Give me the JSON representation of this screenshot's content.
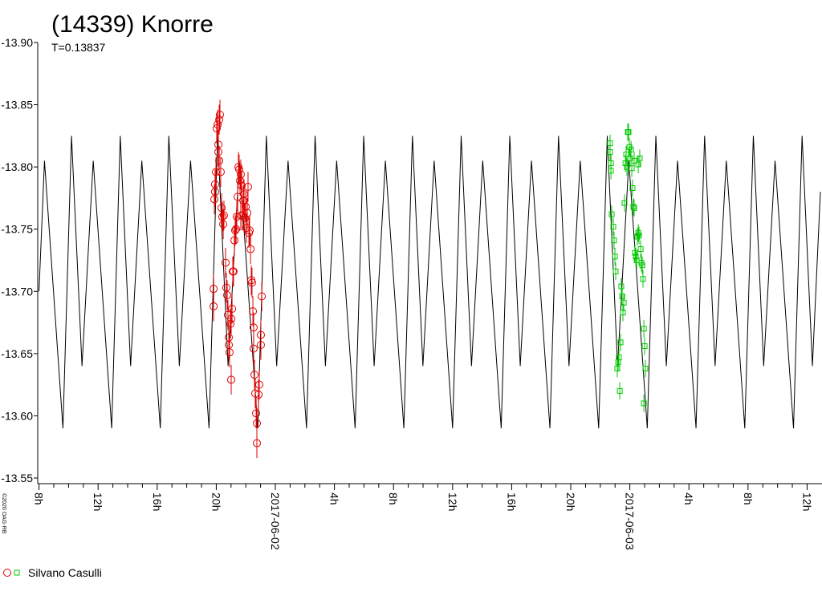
{
  "chart_data": {
    "type": "scatter",
    "title": "(14339) Knorre",
    "subtitle": "T=0.13837",
    "credit": "©2020 OAG-RB",
    "xlim": [
      -16,
      36.9
    ],
    "ylim": [
      -13.55,
      -13.9
    ],
    "yticks": [
      {
        "value": -13.9,
        "label": "-13.90"
      },
      -13.85,
      {
        "value": -13.8,
        "label": "-13.80"
      },
      -13.75,
      {
        "value": -13.7,
        "label": "-13.70"
      },
      -13.65,
      {
        "value": -13.6,
        "label": "-13.60"
      },
      -13.55
    ],
    "xticks": [
      {
        "value": -16,
        "label": "8h"
      },
      {
        "value": -12,
        "label": "12h"
      },
      {
        "value": -8,
        "label": "16h"
      },
      {
        "value": -4,
        "label": "20h"
      },
      {
        "value": 0,
        "label": "2017-06-02"
      },
      {
        "value": 4,
        "label": "4h"
      },
      {
        "value": 8,
        "label": "8h"
      },
      {
        "value": 12,
        "label": "12h"
      },
      {
        "value": 16,
        "label": "16h"
      },
      {
        "value": 20,
        "label": "20h"
      },
      {
        "value": 24,
        "label": "2017-06-03"
      },
      {
        "value": 28,
        "label": "4h"
      },
      {
        "value": 32,
        "label": "8h"
      },
      {
        "value": 36,
        "label": "12h"
      }
    ],
    "series": [
      {
        "type": "line",
        "color": "#000000",
        "x": [
          -16,
          -15.63,
          -14.38,
          -13.8,
          -13.09,
          -12.33,
          -11.08,
          -10.5,
          -9.8,
          -9.04,
          -7.79,
          -7.21,
          -6.5,
          -5.74,
          -4.49,
          -3.91,
          -3.2,
          -2.44,
          -1.19,
          -0.61,
          0.09,
          0.86,
          2.11,
          2.69,
          3.39,
          4.15,
          5.4,
          5.98,
          6.69,
          7.45,
          8.7,
          9.28,
          9.99,
          10.75,
          12.0,
          12.58,
          13.28,
          14.04,
          15.29,
          15.87,
          16.58,
          17.34,
          18.59,
          19.17,
          19.88,
          20.64,
          21.89,
          22.47,
          23.17,
          23.93,
          25.18,
          25.76,
          26.47,
          27.23,
          28.48,
          29.06,
          29.77,
          30.53,
          31.78,
          32.36,
          33.06,
          33.83,
          35.08,
          35.66,
          36.36,
          36.9
        ],
        "values": [
          -13.7,
          -13.805,
          -13.59,
          -13.825,
          -13.64,
          -13.805,
          -13.59,
          -13.825,
          -13.64,
          -13.805,
          -13.59,
          -13.825,
          -13.64,
          -13.805,
          -13.59,
          -13.825,
          -13.64,
          -13.805,
          -13.59,
          -13.825,
          -13.64,
          -13.805,
          -13.59,
          -13.825,
          -13.64,
          -13.805,
          -13.59,
          -13.825,
          -13.64,
          -13.805,
          -13.59,
          -13.825,
          -13.64,
          -13.805,
          -13.59,
          -13.825,
          -13.64,
          -13.805,
          -13.59,
          -13.825,
          -13.64,
          -13.805,
          -13.59,
          -13.825,
          -13.64,
          -13.805,
          -13.59,
          -13.825,
          -13.64,
          -13.805,
          -13.59,
          -13.825,
          -13.64,
          -13.805,
          -13.59,
          -13.825,
          -13.64,
          -13.805,
          -13.59,
          -13.825,
          -13.64,
          -13.805,
          -13.59,
          -13.825,
          -13.64,
          -13.78
        ]
      },
      {
        "type": "scatter",
        "name": "Silvano Casulli",
        "marker": "circle",
        "color": "#e00000",
        "error": 0.012,
        "x": [
          -4.18,
          -4.18,
          -4.13,
          -4.08,
          -4.08,
          -4.02,
          -3.97,
          -3.91,
          -3.86,
          -3.8,
          -3.75,
          -3.86,
          -3.8,
          -3.7,
          -3.64,
          -3.59,
          -3.53,
          -3.48,
          -3.37,
          -3.32,
          -3.26,
          -3.21,
          -3.15,
          -3.15,
          -3.1,
          -3.04,
          -2.99,
          -2.93,
          -2.99,
          -2.88,
          -2.83,
          -2.77,
          -2.72,
          -2.66,
          -2.61,
          -2.55,
          -2.5,
          -2.45,
          -2.39,
          -2.34,
          -2.28,
          -2.34,
          -2.23,
          -2.17,
          -2.12,
          -2.07,
          -2.01,
          -1.96,
          -1.9,
          -1.85,
          -1.79,
          -1.74,
          -1.68,
          -1.63,
          -1.58,
          -1.52,
          -1.47,
          -1.47,
          -1.41,
          -1.36,
          -1.3,
          -1.25,
          -1.25,
          -1.14,
          -1.09,
          -0.98,
          -0.98,
          -0.92
        ],
        "values": [
          -13.702,
          -13.688,
          -13.774,
          -13.78,
          -13.786,
          -13.796,
          -13.831,
          -13.834,
          -13.818,
          -13.838,
          -13.842,
          -13.812,
          -13.805,
          -13.796,
          -13.767,
          -13.76,
          -13.754,
          -13.761,
          -13.723,
          -13.703,
          -13.697,
          -13.681,
          -13.663,
          -13.657,
          -13.651,
          -13.674,
          -13.678,
          -13.686,
          -13.629,
          -13.716,
          -13.716,
          -13.741,
          -13.749,
          -13.75,
          -13.76,
          -13.776,
          -13.8,
          -13.798,
          -13.789,
          -13.794,
          -13.785,
          -13.761,
          -13.761,
          -13.773,
          -13.778,
          -13.759,
          -13.768,
          -13.751,
          -13.763,
          -13.784,
          -13.747,
          -13.749,
          -13.734,
          -13.709,
          -13.707,
          -13.684,
          -13.671,
          -13.654,
          -13.633,
          -13.618,
          -13.602,
          -13.594,
          -13.578,
          -13.617,
          -13.625,
          -13.657,
          -13.665,
          -13.696
        ]
      },
      {
        "type": "scatter",
        "marker": "square",
        "color": "#00c800",
        "error": 0.007,
        "x": [
          22.66,
          22.66,
          22.72,
          22.72,
          22.77,
          22.88,
          22.93,
          22.99,
          23.04,
          23.15,
          23.21,
          23.26,
          23.32,
          23.37,
          23.42,
          23.48,
          23.53,
          23.59,
          23.64,
          23.7,
          23.75,
          23.8,
          23.86,
          23.91,
          23.97,
          24.02,
          24.08,
          24.13,
          24.18,
          24.24,
          24.29,
          24.35,
          24.4,
          24.46,
          24.51,
          24.57,
          24.62,
          24.67,
          24.73,
          24.78,
          24.84,
          24.89,
          24.95,
          25.0,
          25.05,
          24.95,
          24.57,
          24.29
        ],
        "values": [
          -13.819,
          -13.812,
          -13.803,
          -13.797,
          -13.762,
          -13.752,
          -13.741,
          -13.728,
          -13.716,
          -13.638,
          -13.643,
          -13.647,
          -13.62,
          -13.659,
          -13.704,
          -13.696,
          -13.683,
          -13.691,
          -13.771,
          -13.803,
          -13.81,
          -13.8,
          -13.828,
          -13.828,
          -13.816,
          -13.807,
          -13.814,
          -13.799,
          -13.783,
          -13.768,
          -13.767,
          -13.731,
          -13.728,
          -13.725,
          -13.744,
          -13.747,
          -13.745,
          -13.807,
          -13.734,
          -13.723,
          -13.721,
          -13.71,
          -13.67,
          -13.656,
          -13.638,
          -13.61,
          -13.802,
          -13.805
        ]
      }
    ]
  }
}
